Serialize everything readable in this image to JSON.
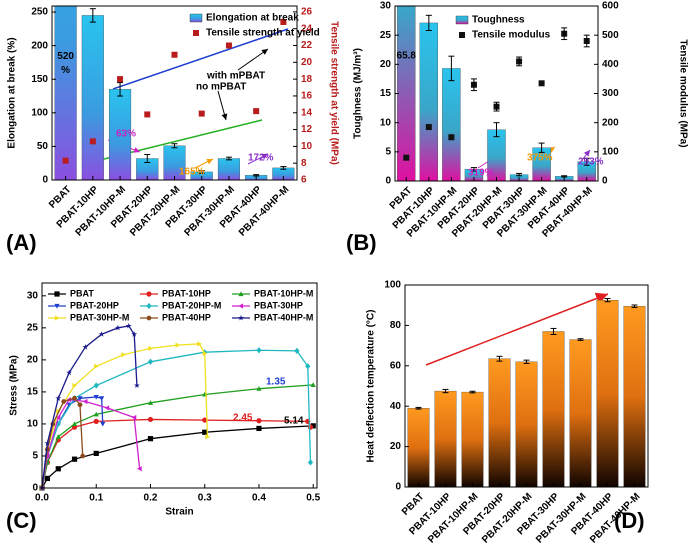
{
  "chart_data": [
    {
      "type": "bar",
      "panel_label": "(A)",
      "categories": [
        "PBAT",
        "PBAT-10HP",
        "PBAT-10HP-M",
        "PBAT-20HP",
        "PBAT-20HP-M",
        "PBAT-30HP",
        "PBAT-30HP-M",
        "PBAT-40HP",
        "PBAT-40HP-M"
      ],
      "ylabel": "Elongation at break (%)",
      "y2label": "Tensile strength at yield (MPa)",
      "ylim": [
        0,
        259
      ],
      "yticks": [
        0,
        50,
        100,
        150,
        200,
        250
      ],
      "y2lim": [
        6,
        26.7
      ],
      "y2ticks": [
        6,
        8,
        10,
        12,
        14,
        16,
        18,
        20,
        22,
        24,
        26
      ],
      "legend": "upper right",
      "series": [
        {
          "name": "Elongation at break",
          "kind": "bar",
          "color": "#29a8e0",
          "values": [
            520,
            245,
            135,
            32,
            51,
            12,
            32,
            7,
            18
          ],
          "errors": [
            null,
            10,
            10,
            6,
            3,
            2,
            2,
            1,
            2
          ],
          "value_labels": [
            "520 %",
            null,
            null,
            null,
            null,
            null,
            null,
            null,
            null
          ]
        },
        {
          "name": "Tensile strength at yield",
          "kind": "scatter",
          "marker": "square",
          "axis": "y2",
          "color": "#b81c1c",
          "values": [
            8.3,
            10.6,
            18.0,
            13.8,
            20.9,
            13.9,
            22.0,
            14.2,
            24.8
          ]
        }
      ],
      "annotations": [
        {
          "text": "with mPBAT",
          "color": "#000000"
        },
        {
          "text": "no mPBAT",
          "color": "#000000"
        },
        {
          "text": "63%",
          "color": "#c026c0"
        },
        {
          "text": "165%",
          "color": "#f59a00"
        },
        {
          "text": "172%",
          "color": "#8b2fc9"
        }
      ]
    },
    {
      "type": "bar",
      "panel_label": "(B)",
      "categories": [
        "PBAT",
        "PBAT-10HP",
        "PBAT-10HP-M",
        "PBAT-20HP",
        "PBAT-20HP-M",
        "PBAT-30HP",
        "PBAT-30HP-M",
        "PBAT-40HP",
        "PBAT-40HP-M"
      ],
      "ylabel": "Toughness (MJ/m³)",
      "y2label": "Tensile modulus (MPa)",
      "ylim": [
        0,
        30
      ],
      "yticks": [
        0,
        5,
        10,
        15,
        20,
        25,
        30
      ],
      "y2lim": [
        0,
        600
      ],
      "y2ticks": [
        0,
        100,
        200,
        300,
        400,
        500,
        600
      ],
      "legend": "upper right",
      "series": [
        {
          "name": "Toughness",
          "kind": "bar",
          "color": "#29b3d9",
          "values": [
            65.8,
            27.1,
            19.3,
            2.0,
            8.8,
            1.1,
            5.7,
            0.8,
            3.3
          ],
          "errors": [
            null,
            1.3,
            2.1,
            0.3,
            1.2,
            0.2,
            0.8,
            0.1,
            0.6
          ],
          "value_labels": [
            "65.8",
            null,
            null,
            null,
            null,
            null,
            null,
            null,
            null
          ]
        },
        {
          "name": "Tensile modulus",
          "kind": "scatter",
          "marker": "square",
          "axis": "y2",
          "color": "#111111",
          "values": [
            80,
            185,
            150,
            330,
            255,
            410,
            335,
            505,
            480
          ],
          "errors": [
            null,
            null,
            null,
            20,
            15,
            15,
            null,
            20,
            20
          ]
        }
      ],
      "annotations": [
        {
          "text": "319%",
          "color": "#d21fc4"
        },
        {
          "text": "375%",
          "color": "#f59a00"
        },
        {
          "text": "293%",
          "color": "#8b2fc9"
        }
      ]
    },
    {
      "type": "line",
      "panel_label": "(C)",
      "xlabel": "Strain",
      "ylabel": "Stress (MPa)",
      "xlim": [
        0,
        0.507
      ],
      "xticks": [
        {
          "value": 0,
          "label": "0.0"
        },
        0.1,
        0.2,
        0.3,
        0.4,
        0.5
      ],
      "ylim": [
        0,
        32
      ],
      "yticks": [
        0,
        5,
        10,
        15,
        20,
        25,
        30
      ],
      "legend": "upper",
      "series": [
        {
          "name": "PBAT",
          "color": "#000000",
          "marker": "square",
          "x": [
            0,
            0.01,
            0.03,
            0.06,
            0.1,
            0.2,
            0.3,
            0.4,
            0.5
          ],
          "values": [
            0,
            1.5,
            3,
            4.5,
            5.4,
            7.7,
            8.7,
            9.3,
            9.7
          ]
        },
        {
          "name": "PBAT-10HP",
          "color": "#e02020",
          "marker": "circle",
          "x": [
            0,
            0.01,
            0.03,
            0.06,
            0.1,
            0.2,
            0.3,
            0.4,
            0.49,
            0.495
          ],
          "values": [
            0,
            4,
            7.5,
            9.5,
            10.4,
            10.7,
            10.6,
            10.5,
            10.4,
            9.5
          ]
        },
        {
          "name": "PBAT-10HP-M",
          "color": "#1ea01e",
          "marker": "triangle-up",
          "x": [
            0,
            0.01,
            0.03,
            0.06,
            0.1,
            0.2,
            0.3,
            0.4,
            0.5
          ],
          "values": [
            0,
            4,
            8,
            10,
            11.5,
            13.3,
            14.6,
            15.5,
            16.1
          ]
        },
        {
          "name": "PBAT-20HP",
          "color": "#1f3fd0",
          "marker": "triangle-down",
          "x": [
            0,
            0.01,
            0.03,
            0.05,
            0.07,
            0.1,
            0.11,
            0.112
          ],
          "values": [
            0,
            5,
            10,
            13,
            14,
            14.2,
            14,
            10
          ]
        },
        {
          "name": "PBAT-20HP-M",
          "color": "#20b8c0",
          "marker": "diamond",
          "x": [
            0,
            0.01,
            0.03,
            0.06,
            0.1,
            0.2,
            0.3,
            0.4,
            0.47,
            0.49,
            0.495
          ],
          "values": [
            0,
            5,
            10,
            14,
            16,
            19.7,
            21.2,
            21.5,
            21.4,
            19,
            4
          ]
        },
        {
          "name": "PBAT-30HP",
          "color": "#d020d0",
          "marker": "triangle-left",
          "x": [
            0,
            0.01,
            0.03,
            0.05,
            0.08,
            0.12,
            0.17,
            0.18
          ],
          "values": [
            0,
            5,
            11,
            13.8,
            13.5,
            12.5,
            11,
            3
          ]
        },
        {
          "name": "PBAT-30HP-M",
          "color": "#f0e020",
          "marker": "triangle-right",
          "x": [
            0,
            0.01,
            0.03,
            0.06,
            0.1,
            0.15,
            0.2,
            0.25,
            0.29,
            0.3,
            0.305
          ],
          "values": [
            0,
            6,
            12,
            16,
            19,
            20.8,
            21.8,
            22.3,
            22.5,
            21,
            8
          ]
        },
        {
          "name": "PBAT-40HP",
          "color": "#8b4a1c",
          "marker": "hexagon",
          "x": [
            0,
            0.01,
            0.02,
            0.04,
            0.06,
            0.07,
            0.075
          ],
          "values": [
            0,
            6,
            10,
            13.5,
            14,
            13,
            5
          ]
        },
        {
          "name": "PBAT-40HP-M",
          "color": "#1a1a8c",
          "marker": "star",
          "x": [
            0,
            0.01,
            0.03,
            0.05,
            0.08,
            0.11,
            0.14,
            0.16,
            0.17,
            0.175
          ],
          "values": [
            0,
            7,
            14,
            18,
            22,
            24,
            25,
            25.3,
            24,
            16
          ]
        }
      ],
      "annotations": [
        {
          "text": "2.45",
          "color": "#e02020"
        },
        {
          "text": "1.35",
          "color": "#1f3fd0"
        },
        {
          "text": "5.14",
          "color": "#000000"
        }
      ]
    },
    {
      "type": "bar",
      "panel_label": "(D)",
      "categories": [
        "PBAT",
        "PBAT-10HP",
        "PBAT-10HP-M",
        "PBAT-20HP",
        "PBAT-20HP-M",
        "PBAT-30HP",
        "PBAT-30HP-M",
        "PBAT-40HP",
        "PBAT-40HP-M"
      ],
      "ylabel": "Heat deflection temperature (°C)",
      "ylim": [
        0,
        100
      ],
      "yticks": [
        0,
        20,
        40,
        60,
        80,
        100
      ],
      "series": [
        {
          "kind": "bar",
          "color": "#ff8c10",
          "values": [
            39,
            47.5,
            47,
            63.5,
            62,
            77,
            73,
            92.5,
            89.5
          ],
          "errors": [
            0.4,
            0.8,
            0.4,
            1.2,
            0.8,
            1.5,
            0.4,
            0.8,
            0.6
          ]
        }
      ]
    }
  ]
}
